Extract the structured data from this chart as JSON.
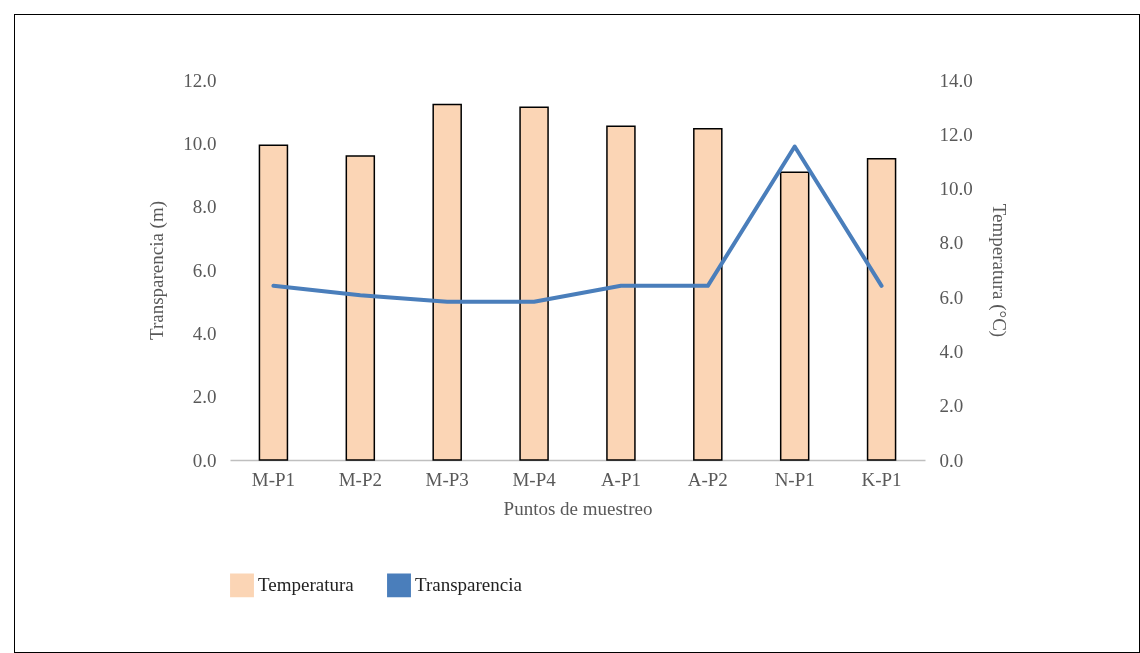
{
  "chart_data": {
    "type": "bar",
    "xlabel": "Puntos de muestreo",
    "ylabel": "Transparencia (m)",
    "y2label": "Temperatura (°C)",
    "categories": [
      "M-P1",
      "M-P2",
      "M-P3",
      "M-P4",
      "A-P1",
      "A-P2",
      "N-P1",
      "K-P1"
    ],
    "series": [
      {
        "name": "Temperatura",
        "axis": "y2",
        "color": "#fbd5b5",
        "values": [
          11.6,
          11.2,
          13.1,
          13.0,
          12.3,
          12.2,
          10.6,
          11.1
        ]
      },
      {
        "name": "Transparencia",
        "type": "line",
        "color": "#4a7ebb",
        "values": [
          5.5,
          5.2,
          5.0,
          5.0,
          5.5,
          5.5,
          9.9,
          5.5
        ]
      }
    ],
    "ylim": [
      0,
      12
    ],
    "yticks": [
      {
        "value": 0,
        "label": "0.0"
      },
      {
        "value": 2,
        "label": "2.0"
      },
      {
        "value": 4,
        "label": "4.0"
      },
      {
        "value": 6,
        "label": "6.0"
      },
      {
        "value": 8,
        "label": "8.0"
      },
      {
        "value": 10,
        "label": "10.0"
      },
      {
        "value": 12,
        "label": "12.0"
      }
    ],
    "y2lim": [
      0,
      14
    ],
    "y2ticks": [
      {
        "value": 0,
        "label": "0.0"
      },
      {
        "value": 2,
        "label": "2.0"
      },
      {
        "value": 4,
        "label": "4.0"
      },
      {
        "value": 6,
        "label": "6.0"
      },
      {
        "value": 8,
        "label": "8.0"
      },
      {
        "value": 10,
        "label": "10.0"
      },
      {
        "value": 12,
        "label": "12.0"
      },
      {
        "value": 14,
        "label": "14.0"
      }
    ],
    "grid": false,
    "legend": "bottom"
  }
}
